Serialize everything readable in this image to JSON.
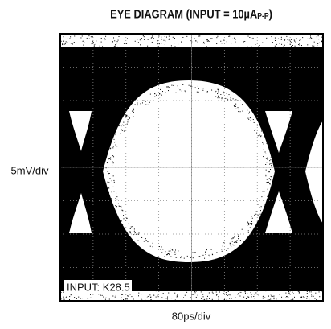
{
  "chart_data": {
    "type": "eye",
    "title": "EYE DIAGRAM (INPUT = 10µA",
    "title_subscript": "P-P",
    "title_end": ")",
    "y_label": "5mV/div",
    "x_label": "80ps/div",
    "annotation": "INPUT: K28.5"
  }
}
